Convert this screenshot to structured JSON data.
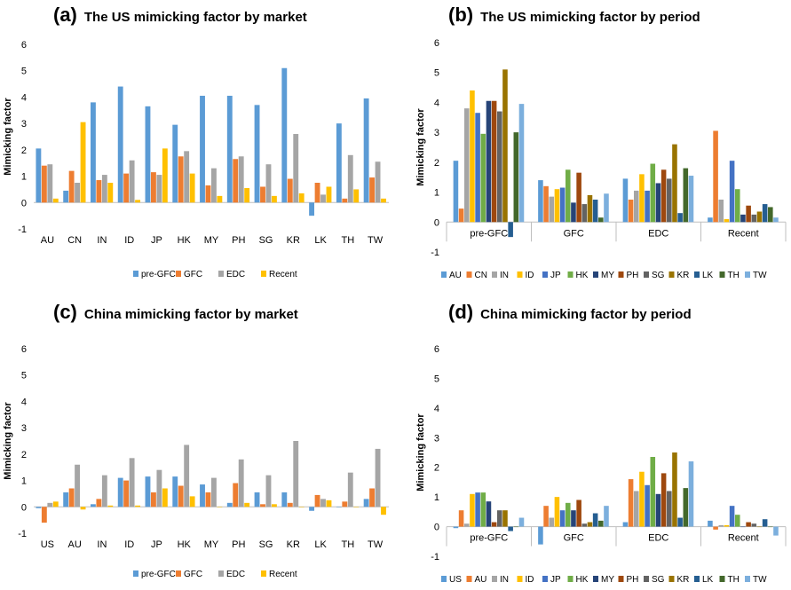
{
  "chart_data": [
    {
      "id": "a",
      "panel_label": "(a)",
      "title": "The US mimicking factor by market",
      "type": "bar",
      "ylabel": "Mimicking factor",
      "ylim": [
        -1,
        6
      ],
      "yticks": [
        "-1",
        "0",
        "1",
        "2",
        "3",
        "4",
        "5",
        "6"
      ],
      "legend": "bottom",
      "categories": [
        "AU",
        "CN",
        "IN",
        "ID",
        "JP",
        "HK",
        "MY",
        "PH",
        "SG",
        "KR",
        "LK",
        "TH",
        "TW"
      ],
      "series": [
        {
          "name": "pre-GFC",
          "color": "#5B9BD5",
          "values": [
            2.05,
            0.45,
            3.8,
            4.4,
            3.65,
            2.95,
            4.05,
            4.05,
            3.7,
            5.1,
            -0.5,
            3.0,
            3.95
          ]
        },
        {
          "name": "GFC",
          "color": "#ED7D31",
          "values": [
            1.4,
            1.2,
            0.85,
            1.1,
            1.15,
            1.75,
            0.65,
            1.65,
            0.6,
            0.9,
            0.75,
            0.15,
            0.95
          ]
        },
        {
          "name": "EDC",
          "color": "#A5A5A5",
          "values": [
            1.45,
            0.75,
            1.05,
            1.6,
            1.05,
            1.95,
            1.3,
            1.75,
            1.45,
            2.6,
            0.3,
            1.8,
            1.55
          ]
        },
        {
          "name": "Recent",
          "color": "#FFC000",
          "values": [
            0.15,
            3.05,
            0.75,
            0.1,
            2.05,
            1.1,
            0.25,
            0.55,
            0.25,
            0.35,
            0.6,
            0.5,
            0.15
          ]
        }
      ]
    },
    {
      "id": "b",
      "panel_label": "(b)",
      "title": "The US mimicking factor by period",
      "type": "bar",
      "ylabel": "Mimicking factor",
      "ylim": [
        -1,
        6
      ],
      "yticks": [
        "-1",
        "0",
        "1",
        "2",
        "3",
        "4",
        "5",
        "6"
      ],
      "legend": "bottom",
      "categories": [
        "pre-GFC",
        "GFC",
        "EDC",
        "Recent"
      ],
      "series": [
        {
          "name": "AU",
          "color": "#5B9BD5",
          "values": [
            2.05,
            1.4,
            1.45,
            0.15
          ]
        },
        {
          "name": "CN",
          "color": "#ED7D31",
          "values": [
            0.45,
            1.2,
            0.75,
            3.05
          ]
        },
        {
          "name": "IN",
          "color": "#A5A5A5",
          "values": [
            3.8,
            0.85,
            1.05,
            0.75
          ]
        },
        {
          "name": "ID",
          "color": "#FFC000",
          "values": [
            4.4,
            1.1,
            1.6,
            0.1
          ]
        },
        {
          "name": "JP",
          "color": "#4472C4",
          "values": [
            3.65,
            1.15,
            1.05,
            2.05
          ]
        },
        {
          "name": "HK",
          "color": "#70AD47",
          "values": [
            2.95,
            1.75,
            1.95,
            1.1
          ]
        },
        {
          "name": "MY",
          "color": "#264478",
          "values": [
            4.05,
            0.65,
            1.3,
            0.25
          ]
        },
        {
          "name": "PH",
          "color": "#9E480E",
          "values": [
            4.05,
            1.65,
            1.75,
            0.55
          ]
        },
        {
          "name": "SG",
          "color": "#636363",
          "values": [
            3.7,
            0.6,
            1.45,
            0.25
          ]
        },
        {
          "name": "KR",
          "color": "#997300",
          "values": [
            5.1,
            0.9,
            2.6,
            0.35
          ]
        },
        {
          "name": "LK",
          "color": "#255E91",
          "values": [
            -0.5,
            0.75,
            0.3,
            0.6
          ]
        },
        {
          "name": "TH",
          "color": "#43682B",
          "values": [
            3.0,
            0.15,
            1.8,
            0.5
          ]
        },
        {
          "name": "TW",
          "color": "#7CAFDD",
          "values": [
            3.95,
            0.95,
            1.55,
            0.15
          ]
        }
      ]
    },
    {
      "id": "c",
      "panel_label": "(c)",
      "title": "China mimicking factor by market",
      "type": "bar",
      "ylabel": "Mimicking factor",
      "ylim": [
        -1,
        6
      ],
      "yticks": [
        "-1",
        "0",
        "1",
        "2",
        "3",
        "4",
        "5",
        "6"
      ],
      "legend": "bottom",
      "categories": [
        "US",
        "AU",
        "IN",
        "ID",
        "JP",
        "HK",
        "MY",
        "PH",
        "SG",
        "KR",
        "LK",
        "TH",
        "TW"
      ],
      "series": [
        {
          "name": "pre-GFC",
          "color": "#5B9BD5",
          "values": [
            -0.05,
            0.55,
            0.1,
            1.1,
            1.15,
            1.15,
            0.85,
            0.15,
            0.55,
            0.55,
            -0.15,
            0.0,
            0.3
          ]
        },
        {
          "name": "GFC",
          "color": "#ED7D31",
          "values": [
            -0.6,
            0.7,
            0.3,
            1.0,
            0.55,
            0.8,
            0.55,
            0.9,
            0.1,
            0.15,
            0.45,
            0.2,
            0.7
          ]
        },
        {
          "name": "EDC",
          "color": "#A5A5A5",
          "values": [
            0.15,
            1.6,
            1.2,
            1.85,
            1.4,
            2.35,
            1.1,
            1.8,
            1.2,
            2.5,
            0.3,
            1.3,
            2.2
          ]
        },
        {
          "name": "Recent",
          "color": "#FFC000",
          "values": [
            0.2,
            -0.1,
            0.05,
            0.05,
            0.7,
            0.4,
            0.0,
            0.15,
            0.1,
            0.0,
            0.25,
            0.0,
            -0.3
          ]
        }
      ]
    },
    {
      "id": "d",
      "panel_label": "(d)",
      "title": "China mimicking factor by period",
      "type": "bar",
      "ylabel": "Mimicking factor",
      "ylim": [
        -1,
        6
      ],
      "yticks": [
        "-1",
        "0",
        "1",
        "2",
        "3",
        "4",
        "5",
        "6"
      ],
      "legend": "bottom",
      "categories": [
        "pre-GFC",
        "GFC",
        "EDC",
        "Recent"
      ],
      "series": [
        {
          "name": "US",
          "color": "#5B9BD5",
          "values": [
            -0.05,
            -0.6,
            0.15,
            0.2
          ]
        },
        {
          "name": "AU",
          "color": "#ED7D31",
          "values": [
            0.55,
            0.7,
            1.6,
            -0.1
          ]
        },
        {
          "name": "IN",
          "color": "#A5A5A5",
          "values": [
            0.1,
            0.3,
            1.2,
            0.05
          ]
        },
        {
          "name": "ID",
          "color": "#FFC000",
          "values": [
            1.1,
            1.0,
            1.85,
            0.05
          ]
        },
        {
          "name": "JP",
          "color": "#4472C4",
          "values": [
            1.15,
            0.55,
            1.4,
            0.7
          ]
        },
        {
          "name": "HK",
          "color": "#70AD47",
          "values": [
            1.15,
            0.8,
            2.35,
            0.4
          ]
        },
        {
          "name": "MY",
          "color": "#264478",
          "values": [
            0.85,
            0.55,
            1.1,
            0.0
          ]
        },
        {
          "name": "PH",
          "color": "#9E480E",
          "values": [
            0.15,
            0.9,
            1.8,
            0.15
          ]
        },
        {
          "name": "SG",
          "color": "#636363",
          "values": [
            0.55,
            0.1,
            1.2,
            0.1
          ]
        },
        {
          "name": "KR",
          "color": "#997300",
          "values": [
            0.55,
            0.15,
            2.5,
            0.0
          ]
        },
        {
          "name": "LK",
          "color": "#255E91",
          "values": [
            -0.15,
            0.45,
            0.3,
            0.25
          ]
        },
        {
          "name": "TH",
          "color": "#43682B",
          "values": [
            0.0,
            0.2,
            1.3,
            0.0
          ]
        },
        {
          "name": "TW",
          "color": "#7CAFDD",
          "values": [
            0.3,
            0.7,
            2.2,
            -0.3
          ]
        }
      ]
    }
  ]
}
